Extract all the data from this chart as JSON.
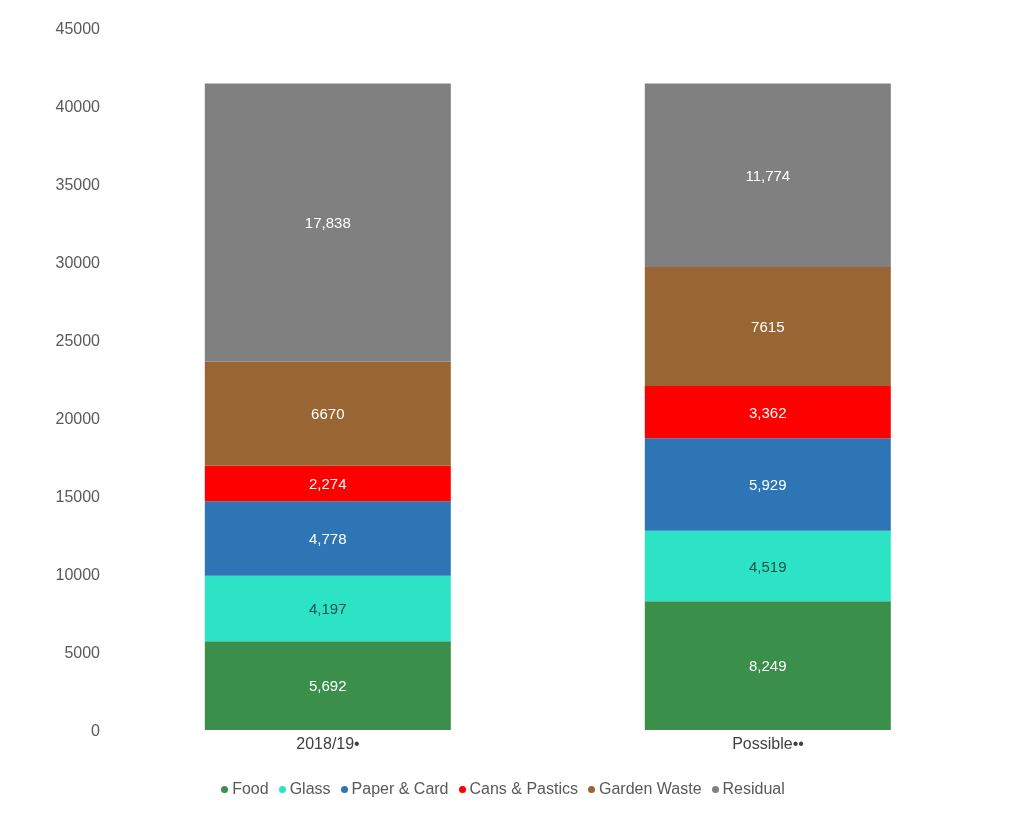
{
  "chart_data": {
    "type": "bar",
    "stacked": true,
    "categories": [
      "2018/19•",
      "Possible••"
    ],
    "series": [
      {
        "name": "Food",
        "color": "#3a8f4a",
        "values": [
          5692,
          8249
        ],
        "value_labels": [
          "5,692",
          "8,249"
        ]
      },
      {
        "name": "Glass",
        "color": "#2de3c5",
        "values": [
          4197,
          4519
        ],
        "value_labels": [
          "4,197",
          "4,519"
        ]
      },
      {
        "name": "Paper & Card",
        "color": "#2e75b6",
        "values": [
          4778,
          5929
        ],
        "value_labels": [
          "4,778",
          "5,929"
        ]
      },
      {
        "name": "Cans & Pastics",
        "color": "#ff0000",
        "values": [
          2274,
          3362
        ],
        "value_labels": [
          "2,274",
          "3,362"
        ]
      },
      {
        "name": "Garden Waste",
        "color": "#996633",
        "values": [
          6670,
          7615
        ],
        "value_labels": [
          "6670",
          "7615"
        ]
      },
      {
        "name": "Residual",
        "color": "#808080",
        "values": [
          17838,
          11774
        ],
        "value_labels": [
          "17,838",
          "11,774"
        ]
      }
    ],
    "ylim": [
      0,
      45000
    ],
    "yticks": [
      0,
      5000,
      10000,
      15000,
      20000,
      25000,
      30000,
      35000,
      40000,
      45000
    ],
    "grid": false,
    "legend": "bottom"
  }
}
